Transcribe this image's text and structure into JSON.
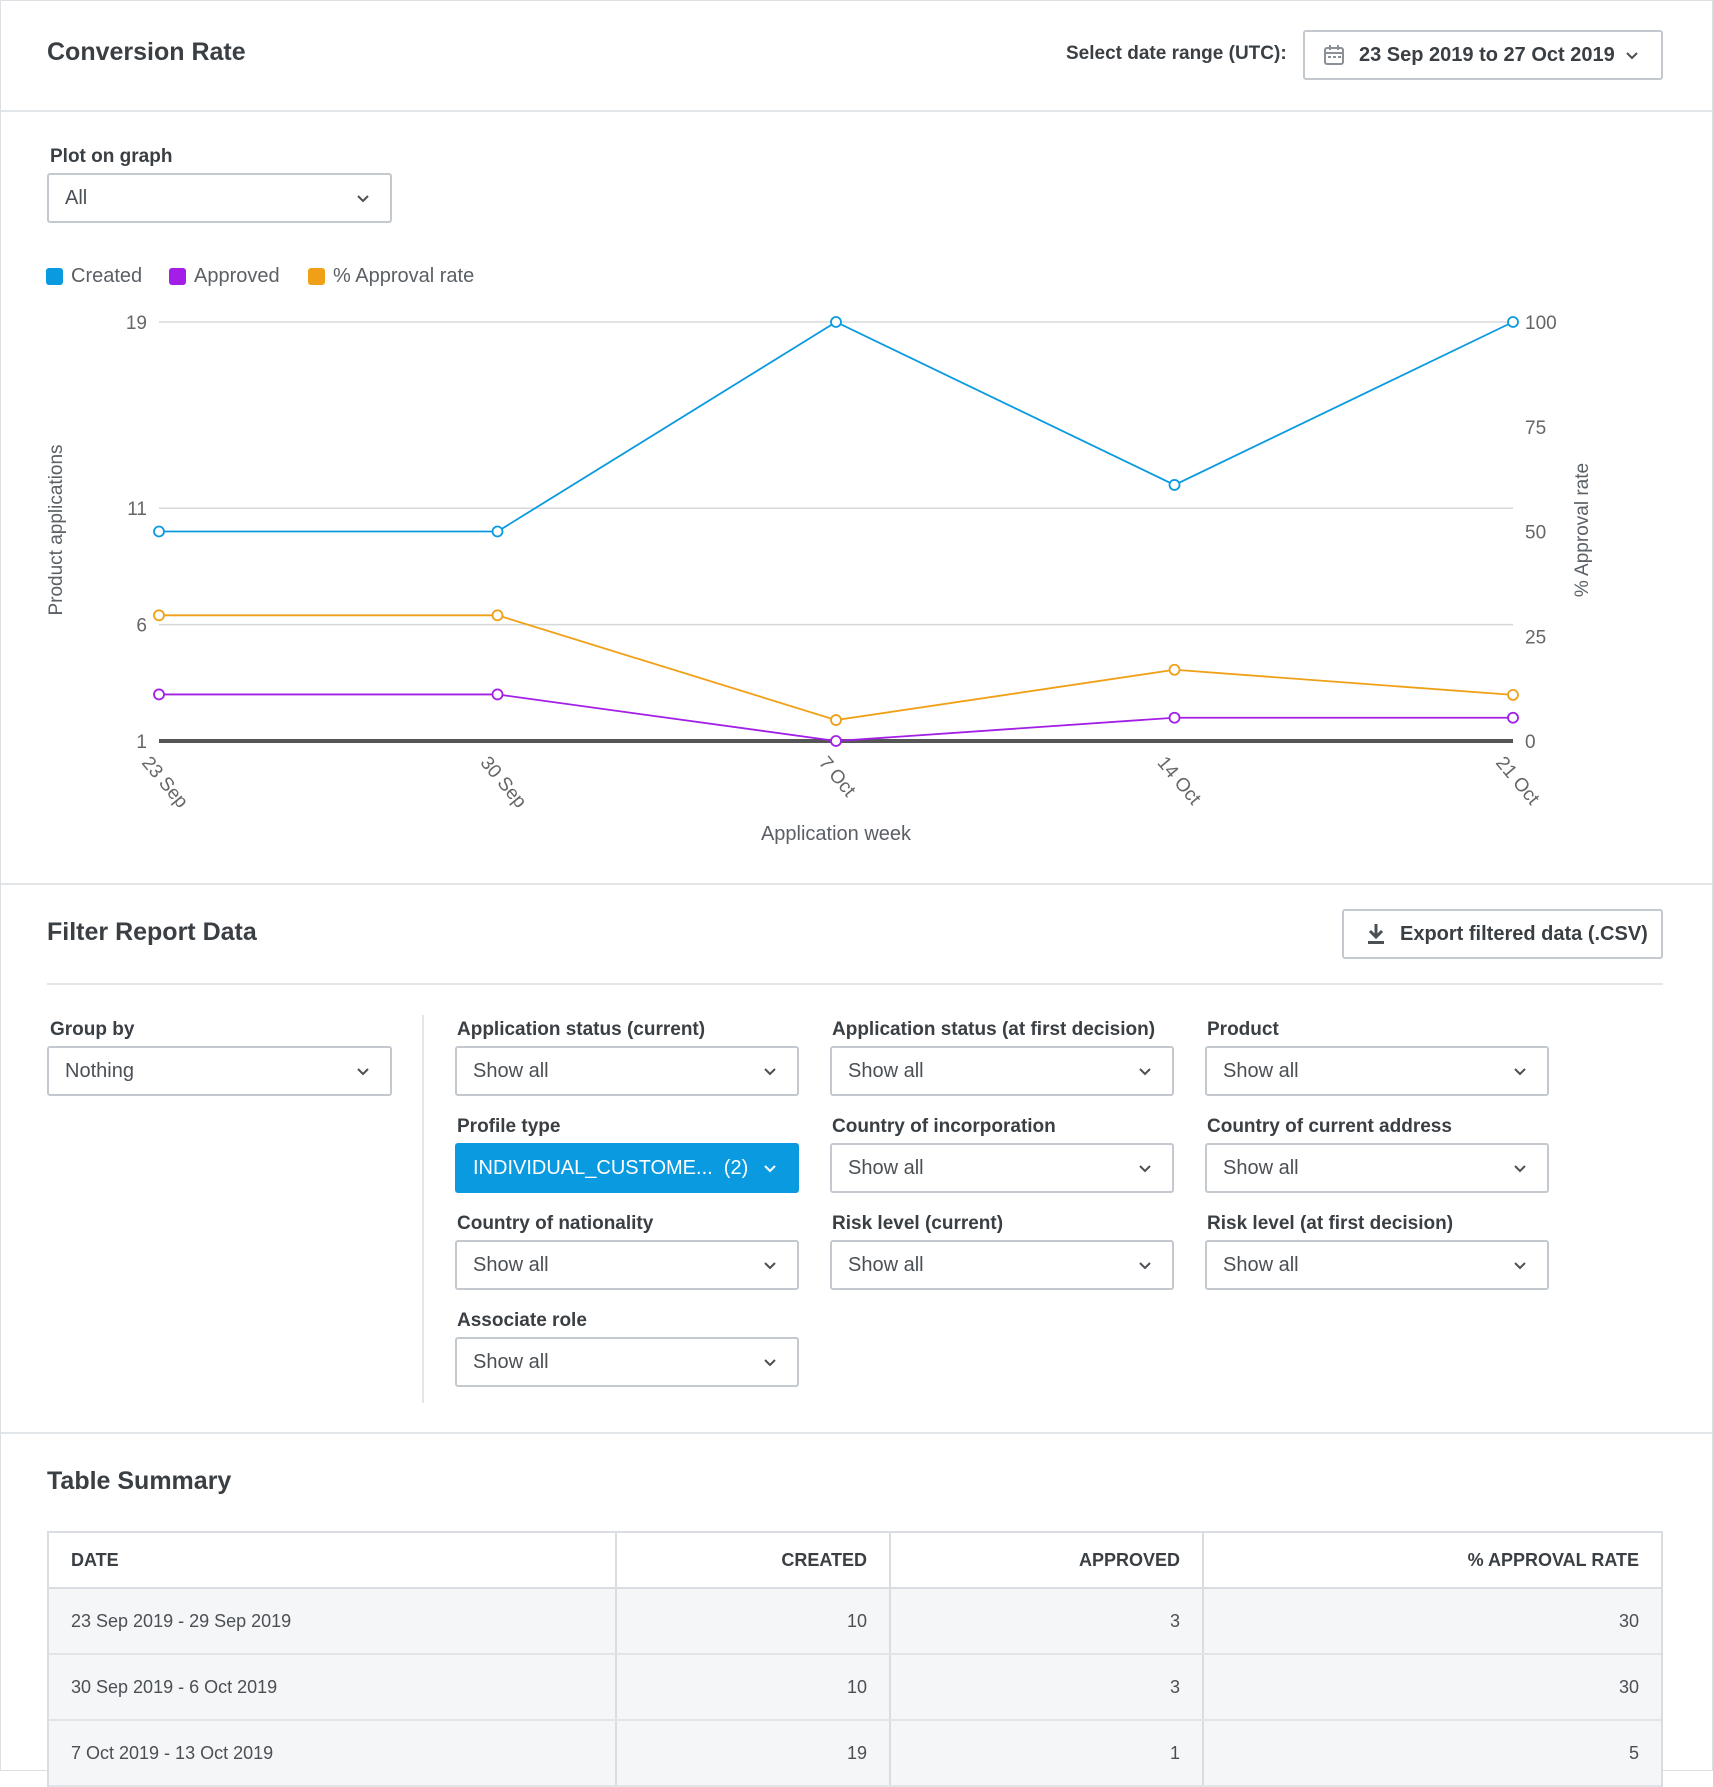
{
  "header": {
    "title": "Conversion Rate",
    "date_range_label": "Select date range (UTC):",
    "date_range_value": "23 Sep 2019 to 27 Oct 2019"
  },
  "plot": {
    "label": "Plot on graph",
    "value": "All"
  },
  "legend": [
    {
      "name": "Created",
      "color": "#0a9ae0"
    },
    {
      "name": "Approved",
      "color": "#a31ee6"
    },
    {
      "name": "% Approval rate",
      "color": "#f0a016"
    }
  ],
  "chart_data": {
    "type": "line",
    "x": [
      "23 Sep",
      "30 Sep",
      "7 Oct",
      "14 Oct",
      "21 Oct"
    ],
    "xlabel": "Application week",
    "ylabel": "Product applications",
    "y2label": "% Approval rate",
    "y_ticks": [
      "19",
      "11",
      "6",
      "1"
    ],
    "y2_ticks": [
      "100",
      "75",
      "50",
      "25",
      "0"
    ],
    "ylim": [
      1,
      19
    ],
    "y2lim": [
      0,
      100
    ],
    "series": [
      {
        "name": "Created",
        "axis": "left",
        "color": "#0a9ae0",
        "values": [
          10,
          10,
          19,
          12,
          19
        ]
      },
      {
        "name": "Approved",
        "axis": "left",
        "color": "#a31ee6",
        "values": [
          3,
          3,
          1,
          2,
          2
        ]
      },
      {
        "name": "% Approval rate",
        "axis": "right",
        "color": "#f0a016",
        "values": [
          30,
          30,
          5,
          17,
          11
        ]
      }
    ]
  },
  "filter": {
    "title": "Filter Report Data",
    "export_label": "Export filtered data (.CSV)",
    "group_by": {
      "label": "Group by",
      "value": "Nothing"
    },
    "fields": [
      {
        "label": "Application status (current)",
        "value": "Show all"
      },
      {
        "label": "Application status (at first decision)",
        "value": "Show all"
      },
      {
        "label": "Product",
        "value": "Show all"
      },
      {
        "label": "Profile type",
        "value": "INDIVIDUAL_CUSTOME...  (2)"
      },
      {
        "label": "Country of incorporation",
        "value": "Show all"
      },
      {
        "label": "Country of current address",
        "value": "Show all"
      },
      {
        "label": "Country of nationality",
        "value": "Show all"
      },
      {
        "label": "Risk level (current)",
        "value": "Show all"
      },
      {
        "label": "Risk level (at first decision)",
        "value": "Show all"
      },
      {
        "label": "Associate role",
        "value": "Show all"
      }
    ]
  },
  "table": {
    "title": "Table Summary",
    "columns": [
      "DATE",
      "CREATED",
      "APPROVED",
      "% APPROVAL RATE"
    ],
    "rows": [
      [
        "23 Sep 2019 - 29 Sep 2019",
        "10",
        "3",
        "30"
      ],
      [
        "30 Sep 2019 - 6 Oct 2019",
        "10",
        "3",
        "30"
      ],
      [
        "7 Oct 2019 - 13 Oct 2019",
        "19",
        "1",
        "5"
      ]
    ]
  }
}
